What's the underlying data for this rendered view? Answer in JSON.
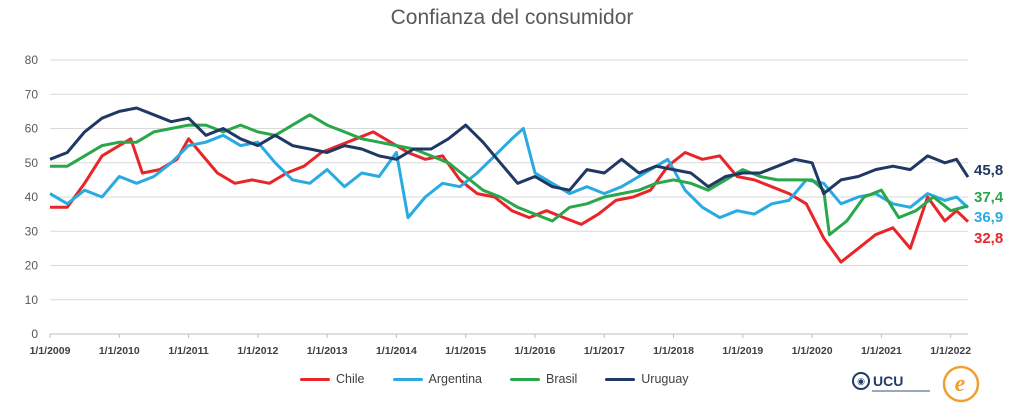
{
  "chart_data": {
    "type": "line",
    "title": "Confianza del consumidor",
    "ylim": [
      0,
      80
    ],
    "yticks": [
      "0",
      "10",
      "20",
      "30",
      "40",
      "50",
      "60",
      "70",
      "80"
    ],
    "xtick_labels": [
      "1/1/2009",
      "1/1/2010",
      "1/1/2011",
      "1/1/2012",
      "1/1/2013",
      "1/1/2014",
      "1/1/2015",
      "1/1/2016",
      "1/1/2017",
      "1/1/2018",
      "1/1/2019",
      "1/1/2020",
      "1/1/2021",
      "1/1/2022"
    ],
    "x_start": "2009-01",
    "x_end": "2022-04",
    "grid": true,
    "legend": "bottom",
    "series": [
      {
        "name": "Chile",
        "color": "#e8262a",
        "end_label": "32,8",
        "points": [
          [
            "2009-01",
            37
          ],
          [
            "2009-04",
            37
          ],
          [
            "2009-07",
            44
          ],
          [
            "2009-10",
            52
          ],
          [
            "2010-01",
            55
          ],
          [
            "2010-03",
            57
          ],
          [
            "2010-05",
            47
          ],
          [
            "2010-08",
            48
          ],
          [
            "2010-11",
            51
          ],
          [
            "2011-01",
            57
          ],
          [
            "2011-03",
            53
          ],
          [
            "2011-06",
            47
          ],
          [
            "2011-09",
            44
          ],
          [
            "2011-12",
            45
          ],
          [
            "2012-03",
            44
          ],
          [
            "2012-06",
            47
          ],
          [
            "2012-09",
            49
          ],
          [
            "2012-12",
            53
          ],
          [
            "2013-03",
            55
          ],
          [
            "2013-06",
            57
          ],
          [
            "2013-09",
            59
          ],
          [
            "2013-12",
            56
          ],
          [
            "2014-03",
            53
          ],
          [
            "2014-06",
            51
          ],
          [
            "2014-09",
            52
          ],
          [
            "2014-12",
            45
          ],
          [
            "2015-03",
            41
          ],
          [
            "2015-06",
            40
          ],
          [
            "2015-09",
            36
          ],
          [
            "2015-12",
            34
          ],
          [
            "2016-03",
            36
          ],
          [
            "2016-06",
            34
          ],
          [
            "2016-09",
            32
          ],
          [
            "2016-12",
            35
          ],
          [
            "2017-03",
            39
          ],
          [
            "2017-06",
            40
          ],
          [
            "2017-09",
            42
          ],
          [
            "2017-12",
            49
          ],
          [
            "2018-03",
            53
          ],
          [
            "2018-06",
            51
          ],
          [
            "2018-09",
            52
          ],
          [
            "2018-12",
            46
          ],
          [
            "2019-03",
            45
          ],
          [
            "2019-06",
            43
          ],
          [
            "2019-09",
            41
          ],
          [
            "2019-12",
            38
          ],
          [
            "2020-03",
            28
          ],
          [
            "2020-06",
            21
          ],
          [
            "2020-09",
            25
          ],
          [
            "2020-12",
            29
          ],
          [
            "2021-03",
            31
          ],
          [
            "2021-06",
            25
          ],
          [
            "2021-09",
            40
          ],
          [
            "2021-12",
            33
          ],
          [
            "2022-02",
            36
          ],
          [
            "2022-04",
            32.8
          ]
        ]
      },
      {
        "name": "Argentina",
        "color": "#29abe2",
        "end_label": "36,9",
        "points": [
          [
            "2009-01",
            41
          ],
          [
            "2009-04",
            38
          ],
          [
            "2009-07",
            42
          ],
          [
            "2009-10",
            40
          ],
          [
            "2010-01",
            46
          ],
          [
            "2010-04",
            44
          ],
          [
            "2010-07",
            46
          ],
          [
            "2010-10",
            50
          ],
          [
            "2011-01",
            55
          ],
          [
            "2011-04",
            56
          ],
          [
            "2011-07",
            58
          ],
          [
            "2011-10",
            55
          ],
          [
            "2012-01",
            56
          ],
          [
            "2012-04",
            50
          ],
          [
            "2012-07",
            45
          ],
          [
            "2012-10",
            44
          ],
          [
            "2013-01",
            48
          ],
          [
            "2013-04",
            43
          ],
          [
            "2013-07",
            47
          ],
          [
            "2013-10",
            46
          ],
          [
            "2014-01",
            53
          ],
          [
            "2014-03",
            34
          ],
          [
            "2014-06",
            40
          ],
          [
            "2014-09",
            44
          ],
          [
            "2014-12",
            43
          ],
          [
            "2015-03",
            47
          ],
          [
            "2015-06",
            52
          ],
          [
            "2015-09",
            57
          ],
          [
            "2015-11",
            60
          ],
          [
            "2016-01",
            47
          ],
          [
            "2016-04",
            44
          ],
          [
            "2016-07",
            41
          ],
          [
            "2016-10",
            43
          ],
          [
            "2017-01",
            41
          ],
          [
            "2017-04",
            43
          ],
          [
            "2017-07",
            46
          ],
          [
            "2017-10",
            49
          ],
          [
            "2017-12",
            51
          ],
          [
            "2018-03",
            42
          ],
          [
            "2018-06",
            37
          ],
          [
            "2018-09",
            34
          ],
          [
            "2018-12",
            36
          ],
          [
            "2019-03",
            35
          ],
          [
            "2019-06",
            38
          ],
          [
            "2019-09",
            39
          ],
          [
            "2019-12",
            45
          ],
          [
            "2020-03",
            44
          ],
          [
            "2020-06",
            38
          ],
          [
            "2020-09",
            40
          ],
          [
            "2020-12",
            41
          ],
          [
            "2021-03",
            38
          ],
          [
            "2021-06",
            37
          ],
          [
            "2021-09",
            41
          ],
          [
            "2021-12",
            39
          ],
          [
            "2022-02",
            40
          ],
          [
            "2022-04",
            36.9
          ]
        ]
      },
      {
        "name": "Brasil",
        "color": "#2aa74a",
        "end_label": "37,4",
        "points": [
          [
            "2009-01",
            49
          ],
          [
            "2009-04",
            49
          ],
          [
            "2009-07",
            52
          ],
          [
            "2009-10",
            55
          ],
          [
            "2010-01",
            56
          ],
          [
            "2010-04",
            56
          ],
          [
            "2010-07",
            59
          ],
          [
            "2010-10",
            60
          ],
          [
            "2011-01",
            61
          ],
          [
            "2011-04",
            61
          ],
          [
            "2011-07",
            59
          ],
          [
            "2011-10",
            61
          ],
          [
            "2012-01",
            59
          ],
          [
            "2012-04",
            58
          ],
          [
            "2012-07",
            61
          ],
          [
            "2012-10",
            64
          ],
          [
            "2013-01",
            61
          ],
          [
            "2013-04",
            59
          ],
          [
            "2013-07",
            57
          ],
          [
            "2013-10",
            56
          ],
          [
            "2014-01",
            55
          ],
          [
            "2014-04",
            54
          ],
          [
            "2014-07",
            52
          ],
          [
            "2014-10",
            50
          ],
          [
            "2015-01",
            46
          ],
          [
            "2015-04",
            42
          ],
          [
            "2015-07",
            40
          ],
          [
            "2015-10",
            37
          ],
          [
            "2016-01",
            35
          ],
          [
            "2016-04",
            33
          ],
          [
            "2016-07",
            37
          ],
          [
            "2016-10",
            38
          ],
          [
            "2017-01",
            40
          ],
          [
            "2017-04",
            41
          ],
          [
            "2017-07",
            42
          ],
          [
            "2017-10",
            44
          ],
          [
            "2018-01",
            45
          ],
          [
            "2018-04",
            44
          ],
          [
            "2018-07",
            42
          ],
          [
            "2018-10",
            45
          ],
          [
            "2019-01",
            48
          ],
          [
            "2019-04",
            46
          ],
          [
            "2019-07",
            45
          ],
          [
            "2019-10",
            45
          ],
          [
            "2020-01",
            45
          ],
          [
            "2020-03",
            42
          ],
          [
            "2020-04",
            29
          ],
          [
            "2020-07",
            33
          ],
          [
            "2020-10",
            40
          ],
          [
            "2021-01",
            42
          ],
          [
            "2021-04",
            34
          ],
          [
            "2021-07",
            36
          ],
          [
            "2021-10",
            40
          ],
          [
            "2022-01",
            36
          ],
          [
            "2022-04",
            37.4
          ]
        ]
      },
      {
        "name": "Uruguay",
        "color": "#1f3864",
        "end_label": "45,8",
        "points": [
          [
            "2009-01",
            51
          ],
          [
            "2009-04",
            53
          ],
          [
            "2009-07",
            59
          ],
          [
            "2009-10",
            63
          ],
          [
            "2010-01",
            65
          ],
          [
            "2010-04",
            66
          ],
          [
            "2010-07",
            64
          ],
          [
            "2010-10",
            62
          ],
          [
            "2011-01",
            63
          ],
          [
            "2011-04",
            58
          ],
          [
            "2011-07",
            60
          ],
          [
            "2011-10",
            57
          ],
          [
            "2012-01",
            55
          ],
          [
            "2012-04",
            58
          ],
          [
            "2012-07",
            55
          ],
          [
            "2012-10",
            54
          ],
          [
            "2013-01",
            53
          ],
          [
            "2013-04",
            55
          ],
          [
            "2013-07",
            54
          ],
          [
            "2013-10",
            52
          ],
          [
            "2014-01",
            51
          ],
          [
            "2014-04",
            54
          ],
          [
            "2014-07",
            54
          ],
          [
            "2014-10",
            57
          ],
          [
            "2015-01",
            61
          ],
          [
            "2015-04",
            56
          ],
          [
            "2015-07",
            50
          ],
          [
            "2015-10",
            44
          ],
          [
            "2016-01",
            46
          ],
          [
            "2016-04",
            43
          ],
          [
            "2016-07",
            42
          ],
          [
            "2016-10",
            48
          ],
          [
            "2017-01",
            47
          ],
          [
            "2017-04",
            51
          ],
          [
            "2017-07",
            47
          ],
          [
            "2017-10",
            49
          ],
          [
            "2018-01",
            48
          ],
          [
            "2018-04",
            47
          ],
          [
            "2018-07",
            43
          ],
          [
            "2018-10",
            46
          ],
          [
            "2019-01",
            47
          ],
          [
            "2019-04",
            47
          ],
          [
            "2019-07",
            49
          ],
          [
            "2019-10",
            51
          ],
          [
            "2020-01",
            50
          ],
          [
            "2020-03",
            41
          ],
          [
            "2020-06",
            45
          ],
          [
            "2020-09",
            46
          ],
          [
            "2020-12",
            48
          ],
          [
            "2021-03",
            49
          ],
          [
            "2021-06",
            48
          ],
          [
            "2021-09",
            52
          ],
          [
            "2021-12",
            50
          ],
          [
            "2022-02",
            51
          ],
          [
            "2022-04",
            45.8
          ]
        ]
      }
    ]
  },
  "logos": {
    "ucu_text": "UCU",
    "e_mark": "e"
  }
}
